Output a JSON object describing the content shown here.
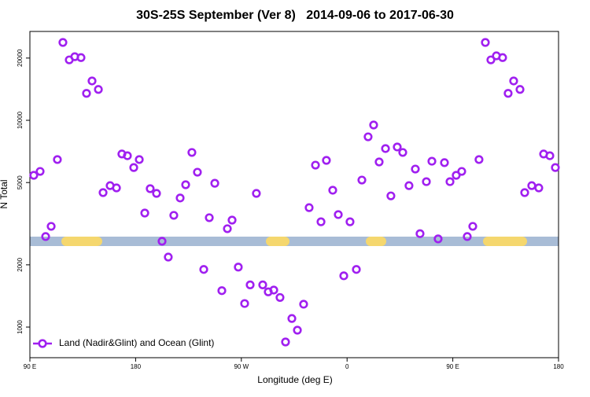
{
  "chart_data": {
    "type": "scatter",
    "title": "30S-25S September (Ver 8)   2014-09-06 to 2017-06-30",
    "x_label": "Longitude (deg E)",
    "y_label": "N Total",
    "x": [
      93.3,
      98.7,
      103.4,
      108.1,
      113.4,
      118.1,
      123.5,
      128.2,
      133.5,
      138.2,
      142.9,
      148.3,
      152.3,
      158.3,
      163.7,
      168.3,
      173.0,
      178.4,
      183.1,
      187.8,
      192.4,
      197.8,
      202.5,
      207.8,
      212.5,
      217.9,
      222.6,
      227.9,
      232.6,
      238.0,
      242.7,
      247.4,
      253.4,
      258.1,
      262.1,
      267.4,
      272.8,
      277.5,
      282.8,
      288.2,
      292.9,
      297.6,
      302.9,
      307.6,
      313.0,
      317.7,
      323.0,
      327.7,
      333.1,
      337.8,
      342.4,
      347.8,
      352.5,
      357.2,
      362.5,
      367.9,
      372.6,
      377.9,
      382.6,
      387.3,
      392.7,
      397.3,
      402.7,
      407.4,
      412.7,
      418.1,
      422.1,
      427.5,
      432.2,
      437.5,
      442.9,
      447.6,
      452.9,
      457.6,
      462.3,
      467.0,
      472.3,
      477.7,
      482.4,
      487.1,
      492.4,
      497.1,
      501.8,
      507.2,
      511.2,
      517.2,
      523.2,
      527.3,
      532.6,
      537.3
    ],
    "series": [
      {
        "name": "Land (Nadir&Glint) and Ocean (Glint)",
        "color": "#a020f0",
        "values": [
          5420,
          5660,
          2740,
          3070,
          6460,
          23800,
          19600,
          20300,
          20100,
          13500,
          15500,
          14100,
          4470,
          4830,
          4710,
          6870,
          6740,
          5910,
          6460,
          3560,
          4670,
          4430,
          2600,
          2180,
          3470,
          4210,
          4880,
          6990,
          5610,
          1900,
          3380,
          4960,
          1500,
          2990,
          3290,
          1950,
          1300,
          1600,
          4430,
          1600,
          1480,
          1510,
          1390,
          847,
          1100,
          966,
          1290,
          3780,
          6070,
          3230,
          6400,
          4590,
          3500,
          1770,
          3230,
          1900,
          5140,
          8320,
          9490,
          6290,
          7300,
          4310,
          7430,
          6990,
          4830,
          5810,
          2830,
          5050,
          6340,
          2670,
          6240,
          5050,
          5420,
          5660,
          2740,
          3070,
          6460,
          23800,
          19600,
          20500,
          20100,
          13500,
          15500,
          14100,
          4470,
          4830,
          4710,
          6870,
          6740,
          5910
        ]
      }
    ],
    "xlim": [
      90,
      540
    ],
    "ylim": [
      711,
      26900
    ],
    "log_y": true,
    "xticks": [
      {
        "value": 90,
        "label": "90 E"
      },
      {
        "value": 180,
        "label": "180"
      },
      {
        "value": 270,
        "label": "90 W"
      },
      {
        "value": 360,
        "label": "0"
      },
      {
        "value": 450,
        "label": "90 E"
      },
      {
        "value": 540,
        "label": "180"
      }
    ],
    "yticks": [
      1000,
      2000,
      5000,
      10000,
      20000
    ],
    "legend": "bottomleft"
  }
}
